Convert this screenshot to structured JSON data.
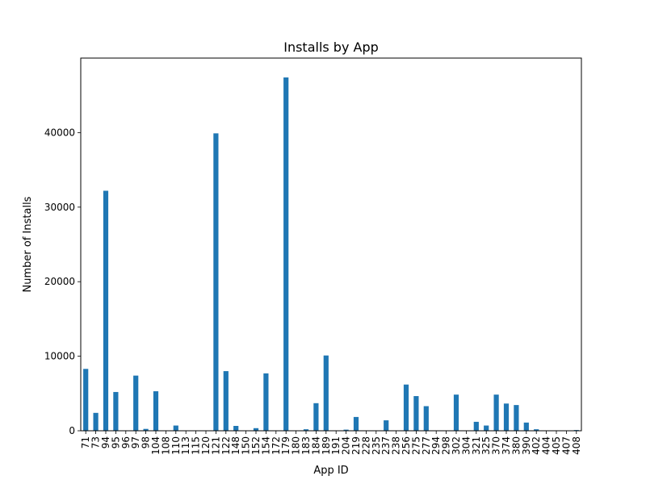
{
  "chart_data": {
    "type": "bar",
    "title": "Installs by App",
    "xlabel": "App ID",
    "ylabel": "Number of Installs",
    "ylim": [
      0,
      50000
    ],
    "yticks": [
      0,
      10000,
      20000,
      30000,
      40000
    ],
    "grid": false,
    "legend": "none",
    "bar_color": "#1f77b4",
    "categories": [
      "71",
      "73",
      "94",
      "95",
      "96",
      "97",
      "98",
      "104",
      "108",
      "110",
      "113",
      "115",
      "120",
      "121",
      "122",
      "148",
      "150",
      "152",
      "154",
      "172",
      "179",
      "180",
      "183",
      "184",
      "189",
      "191",
      "204",
      "219",
      "228",
      "235",
      "237",
      "238",
      "256",
      "275",
      "277",
      "294",
      "298",
      "302",
      "304",
      "321",
      "325",
      "370",
      "374",
      "380",
      "390",
      "402",
      "404",
      "405",
      "407",
      "408"
    ],
    "values": [
      8300,
      2400,
      32200,
      5200,
      0,
      7400,
      250,
      5300,
      0,
      700,
      0,
      0,
      0,
      39900,
      8000,
      650,
      0,
      350,
      7700,
      0,
      47400,
      0,
      200,
      3700,
      10100,
      0,
      150,
      1850,
      0,
      0,
      1400,
      0,
      6200,
      4650,
      3300,
      0,
      0,
      4850,
      0,
      1200,
      700,
      4850,
      3650,
      3450,
      1100,
      200,
      0,
      0,
      0,
      100
    ]
  }
}
